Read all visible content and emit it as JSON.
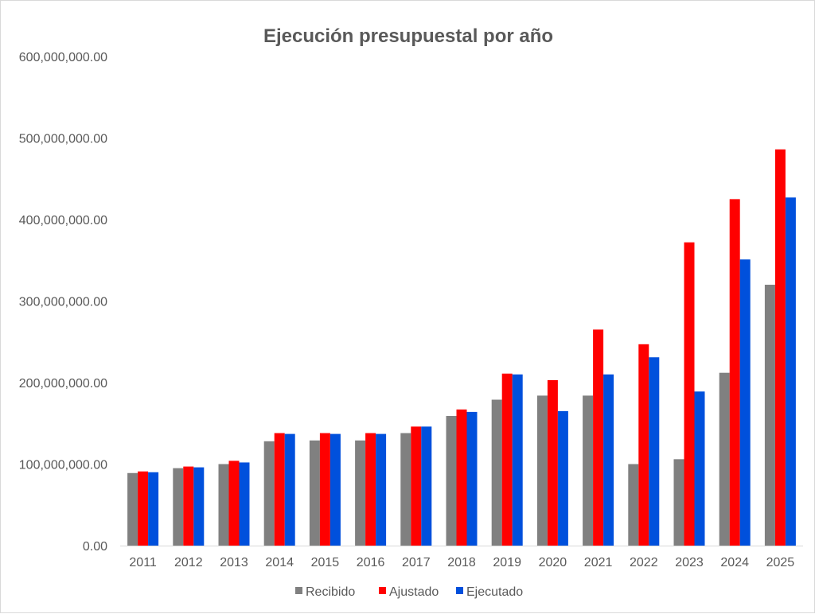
{
  "chart_data": {
    "type": "bar",
    "title": "Ejecución presupuestal por año",
    "xlabel": "",
    "ylabel": "",
    "ylim": [
      0,
      600000000
    ],
    "yticks": [
      0,
      100000000,
      200000000,
      300000000,
      400000000,
      500000000,
      600000000
    ],
    "ytick_labels": [
      "0.00",
      "100,000,000.00",
      "200,000,000.00",
      "300,000,000.00",
      "400,000,000.00",
      "500,000,000.00",
      "600,000,000.00"
    ],
    "grid": false,
    "legend_position": "bottom",
    "categories": [
      "2011",
      "2012",
      "2013",
      "2014",
      "2015",
      "2016",
      "2017",
      "2018",
      "2019",
      "2020",
      "2021",
      "2022",
      "2023",
      "2024",
      "2025"
    ],
    "series": [
      {
        "name": "Recibido",
        "color": "#808080",
        "values": [
          89000000,
          95000000,
          100000000,
          128000000,
          129000000,
          129000000,
          138000000,
          159000000,
          179000000,
          184000000,
          184000000,
          100000000,
          106000000,
          212000000,
          320000000
        ]
      },
      {
        "name": "Ajustado",
        "color": "#ff0000",
        "values": [
          91000000,
          97000000,
          104000000,
          138000000,
          138000000,
          138000000,
          146000000,
          167000000,
          211000000,
          203000000,
          265000000,
          247000000,
          372000000,
          425000000,
          486000000
        ]
      },
      {
        "name": "Ejecutado",
        "color": "#0050dc",
        "values": [
          90000000,
          96000000,
          102000000,
          137000000,
          137000000,
          137000000,
          146000000,
          164000000,
          210000000,
          165000000,
          210000000,
          231000000,
          189000000,
          351000000,
          427000000
        ]
      }
    ]
  }
}
